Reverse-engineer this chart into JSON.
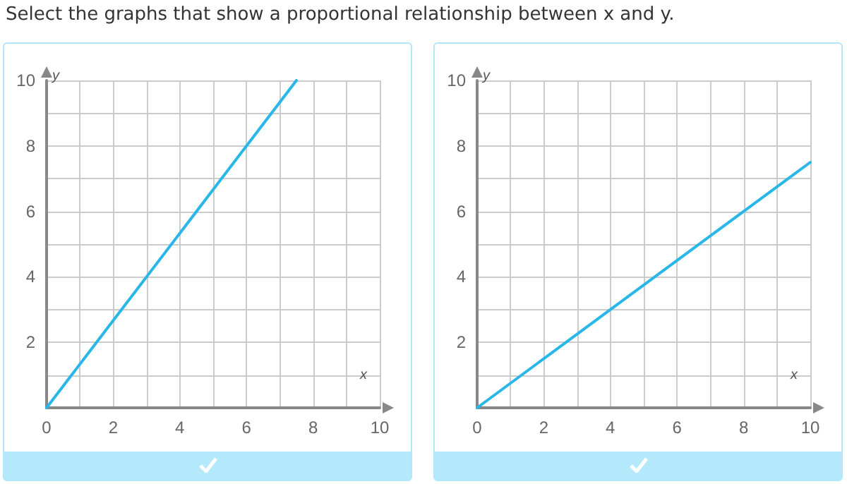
{
  "chart_data": [
    {
      "type": "line",
      "title": "Select the graphs that show a proportional relationship between x and y.",
      "xlabel": "x",
      "ylabel": "y",
      "x": [
        0,
        7.5
      ],
      "series": [
        {
          "color": "#29b6e8",
          "values": [
            0,
            10
          ]
        }
      ],
      "xlim": [
        0,
        10
      ],
      "ylim": [
        0,
        10
      ],
      "xticks": [
        0,
        {
          "value": 1,
          "label": null
        },
        2,
        {
          "value": 3,
          "label": null
        },
        4,
        {
          "value": 5,
          "label": null
        },
        6,
        {
          "value": 7,
          "label": null
        },
        8,
        {
          "value": 9,
          "label": null
        },
        10
      ],
      "yticks": [
        {
          "value": 0,
          "label": null
        },
        {
          "value": 1,
          "label": null
        },
        2,
        {
          "value": 3,
          "label": null
        },
        4,
        {
          "value": 5,
          "label": null
        },
        6,
        {
          "value": 7,
          "label": null
        },
        8,
        {
          "value": 9,
          "label": null
        },
        10
      ],
      "grid": true
    },
    {
      "type": "line",
      "xlabel": "x",
      "ylabel": "y",
      "x": [
        0,
        10
      ],
      "series": [
        {
          "color": "#29b6e8",
          "values": [
            0,
            7.5
          ]
        }
      ],
      "xlim": [
        0,
        10
      ],
      "ylim": [
        0,
        10
      ],
      "xticks": [
        0,
        {
          "value": 1,
          "label": null
        },
        2,
        {
          "value": 3,
          "label": null
        },
        4,
        {
          "value": 5,
          "label": null
        },
        6,
        {
          "value": 7,
          "label": null
        },
        8,
        {
          "value": 9,
          "label": null
        },
        10
      ],
      "yticks": [
        {
          "value": 0,
          "label": null
        },
        {
          "value": 1,
          "label": null
        },
        2,
        {
          "value": 3,
          "label": null
        },
        4,
        {
          "value": 5,
          "label": null
        },
        6,
        {
          "value": 7,
          "label": null
        },
        8,
        {
          "value": 9,
          "label": null
        },
        10
      ],
      "grid": true
    }
  ]
}
